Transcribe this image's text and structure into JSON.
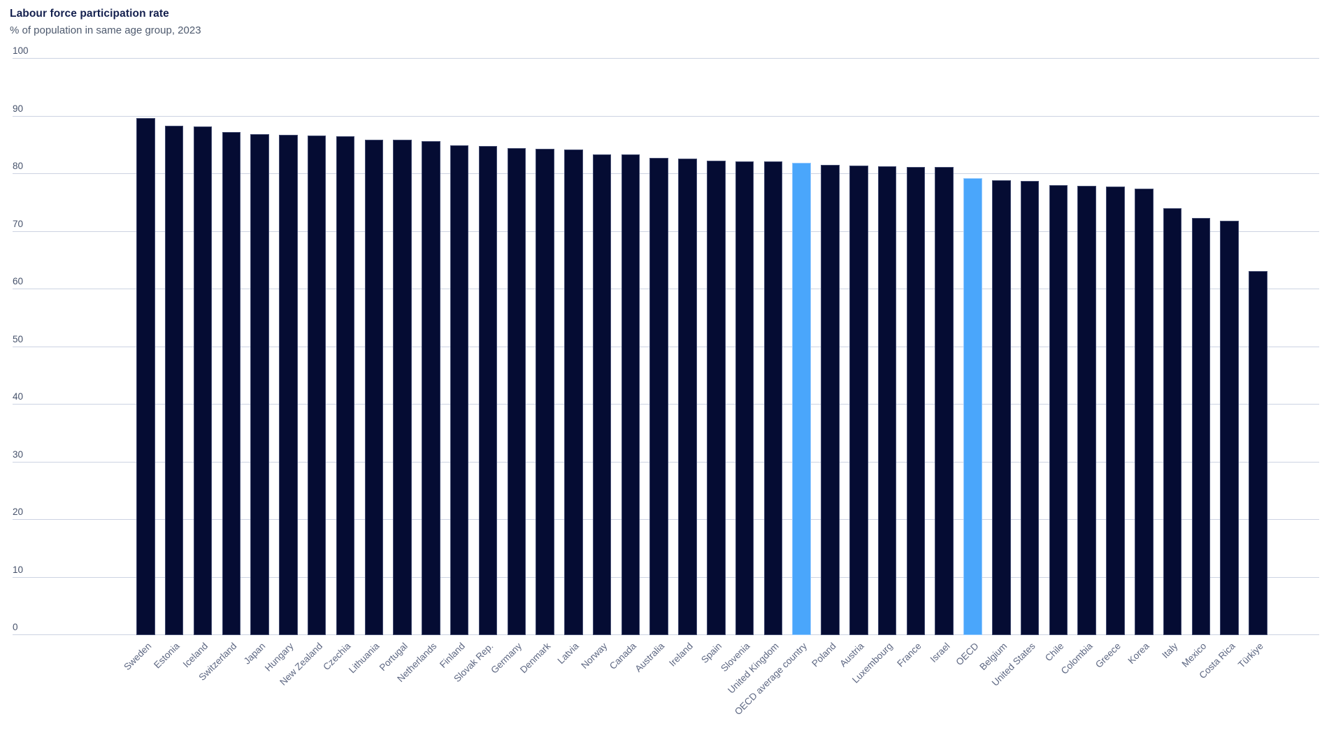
{
  "chart_data": {
    "type": "bar",
    "title": "Labour force participation rate",
    "subtitle": "% of population in same age group, 2023",
    "xlabel": "",
    "ylabel": "",
    "ylim": [
      0,
      100
    ],
    "grid": true,
    "legend": false,
    "yticks": [
      "100",
      "90",
      "80",
      "70",
      "60",
      "50",
      "40",
      "30",
      "20",
      "10",
      "0"
    ],
    "categories": [
      "Sweden",
      "Estonia",
      "Iceland",
      "Switzerland",
      "Japan",
      "Hungary",
      "New Zealand",
      "Czechia",
      "Lithuania",
      "Portugal",
      "Netherlands",
      "Finland",
      "Slovak Rep.",
      "Germany",
      "Denmark",
      "Latvia",
      "Norway",
      "Canada",
      "Australia",
      "Ireland",
      "Spain",
      "Slovenia",
      "United Kingdom",
      "OECD average country",
      "Poland",
      "Austria",
      "Luxembourg",
      "France",
      "Israel",
      "OECD",
      "Belgium",
      "United States",
      "Chile",
      "Colombia",
      "Greece",
      "Korea",
      "Italy",
      "Mexico",
      "Costa Rica",
      "Türkiye"
    ],
    "values": [
      89.7,
      88.4,
      88.3,
      87.3,
      86.9,
      86.8,
      86.7,
      86.5,
      86.0,
      85.9,
      85.7,
      85.0,
      84.8,
      84.5,
      84.4,
      84.3,
      83.4,
      83.4,
      82.8,
      82.7,
      82.3,
      82.2,
      82.2,
      81.9,
      81.6,
      81.4,
      81.3,
      81.2,
      81.2,
      79.3,
      78.9,
      78.8,
      78.1,
      77.9,
      77.8,
      77.4,
      74.1,
      72.4,
      71.9,
      63.2
    ],
    "highlighted_categories": [
      "OECD average country",
      "OECD"
    ],
    "colors": {
      "bar_fill": "#050c33",
      "bar_border": "#424b70",
      "highlight_fill": "#4aa6fb",
      "highlight_border": "#94c9ff",
      "gridline": "#ccd3e2",
      "title_text": "#14204e",
      "subtitle_text": "#4e5a6e",
      "y_tick_text": "#46526b",
      "x_label_text": "#5d6782"
    }
  }
}
